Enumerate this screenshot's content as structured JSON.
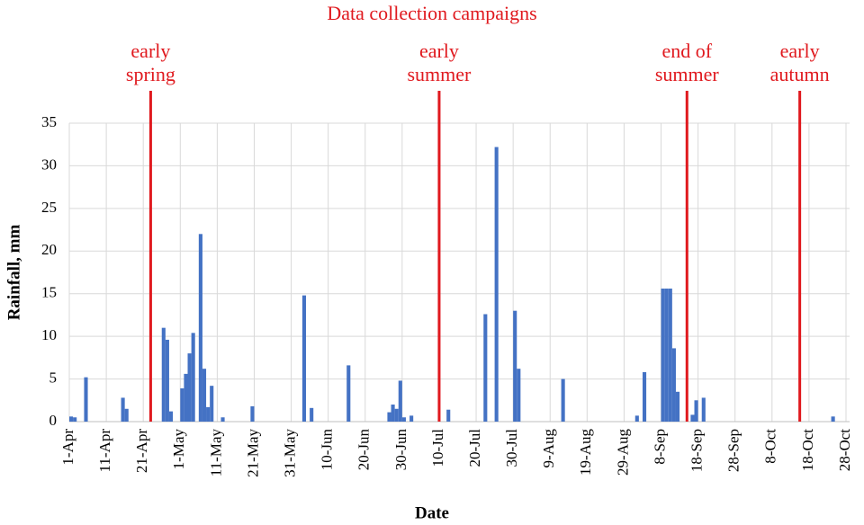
{
  "chart_data": {
    "type": "bar",
    "title": "Data collection campaigns",
    "x_label": "Date",
    "y_label": "Rainfall, mm",
    "color": "#4472c4",
    "grid": true,
    "ylim": [
      0,
      35
    ],
    "yticks": [
      0,
      5,
      10,
      15,
      20,
      25,
      30,
      35
    ],
    "categories": [
      "1-Apr",
      null,
      null,
      null,
      null,
      null,
      null,
      null,
      null,
      null,
      "11-Apr",
      null,
      null,
      null,
      null,
      null,
      null,
      null,
      null,
      null,
      "21-Apr",
      null,
      null,
      null,
      null,
      null,
      null,
      null,
      null,
      null,
      "1-May",
      null,
      null,
      null,
      null,
      null,
      null,
      null,
      null,
      null,
      "11-May",
      null,
      null,
      null,
      null,
      null,
      null,
      null,
      null,
      null,
      "21-May",
      null,
      null,
      null,
      null,
      null,
      null,
      null,
      null,
      null,
      "31-May",
      null,
      null,
      null,
      null,
      null,
      null,
      null,
      null,
      null,
      "10-Jun",
      null,
      null,
      null,
      null,
      null,
      null,
      null,
      null,
      null,
      "20-Jun",
      null,
      null,
      null,
      null,
      null,
      null,
      null,
      null,
      null,
      "30-Jun",
      null,
      null,
      null,
      null,
      null,
      null,
      null,
      null,
      null,
      "10-Jul",
      null,
      null,
      null,
      null,
      null,
      null,
      null,
      null,
      null,
      "20-Jul",
      null,
      null,
      null,
      null,
      null,
      null,
      null,
      null,
      null,
      "30-Jul",
      null,
      null,
      null,
      null,
      null,
      null,
      null,
      null,
      null,
      "9-Aug",
      null,
      null,
      null,
      null,
      null,
      null,
      null,
      null,
      null,
      "19-Aug",
      null,
      null,
      null,
      null,
      null,
      null,
      null,
      null,
      null,
      "29-Aug",
      null,
      null,
      null,
      null,
      null,
      null,
      null,
      null,
      null,
      "8-Sep",
      null,
      null,
      null,
      null,
      null,
      null,
      null,
      null,
      null,
      "18-Sep",
      null,
      null,
      null,
      null,
      null,
      null,
      null,
      null,
      null,
      "28-Sep",
      null,
      null,
      null,
      null,
      null,
      null,
      null,
      null,
      null,
      "8-Oct",
      null,
      null,
      null,
      null,
      null,
      null,
      null,
      null,
      null,
      "18-Oct",
      null,
      null,
      null,
      null,
      null,
      null,
      null,
      null,
      null,
      "28-Oct"
    ],
    "values": [
      0.6,
      0.5,
      0,
      0,
      5.2,
      0,
      0,
      0,
      0,
      0,
      0,
      0,
      0,
      0,
      2.8,
      1.5,
      0,
      0,
      0,
      0,
      0,
      0,
      0,
      0,
      0,
      11,
      9.6,
      1.2,
      0,
      0,
      3.9,
      5.6,
      8,
      10.4,
      0,
      22,
      6.2,
      1.7,
      4.2,
      0,
      0,
      0.5,
      0,
      0,
      0,
      0,
      0,
      0,
      0,
      1.8,
      0,
      0,
      0,
      0,
      0,
      0,
      0,
      0,
      0,
      0,
      0,
      0,
      0,
      14.8,
      0,
      1.6,
      0,
      0,
      0,
      0,
      0,
      0,
      0,
      0,
      0,
      6.6,
      0,
      0,
      0,
      0,
      0,
      0,
      0,
      0,
      0,
      0,
      1.1,
      2,
      1.5,
      4.8,
      0.5,
      0,
      0.7,
      0,
      0,
      0,
      0,
      0,
      0,
      0,
      0,
      0,
      1.4,
      0,
      0,
      0,
      0,
      0,
      0,
      0,
      0,
      0,
      12.6,
      0,
      0,
      32.2,
      0,
      0,
      0,
      0,
      13,
      6.2,
      0,
      0,
      0,
      0,
      0,
      0,
      0,
      0,
      0,
      0,
      0,
      5,
      0,
      0,
      0,
      0,
      0,
      0,
      0,
      0,
      0,
      0,
      0,
      0,
      0,
      0,
      0,
      0,
      0,
      0,
      0,
      0.7,
      0,
      5.8,
      0,
      0,
      0,
      0,
      15.6,
      15.6,
      15.6,
      8.6,
      3.5,
      0,
      0,
      0,
      0.8,
      2.5,
      0,
      2.8,
      0,
      0,
      0,
      0,
      0,
      0,
      0,
      0,
      0,
      0,
      0,
      0,
      0,
      0,
      0,
      0,
      0,
      0,
      0,
      0,
      0,
      0,
      0,
      0,
      0,
      0,
      0,
      0,
      0,
      0,
      0,
      0,
      0,
      0,
      0.6,
      0,
      0,
      0,
      0
    ],
    "campaign_color": "#e0191e",
    "campaigns": [
      {
        "label": [
          "early",
          "spring"
        ],
        "x": 22
      },
      {
        "label": [
          "early",
          "summer"
        ],
        "x": 100
      },
      {
        "label": [
          "end of",
          "summer"
        ],
        "x": 167
      },
      {
        "label": [
          "early",
          "autumn"
        ],
        "x": 197.5
      }
    ]
  }
}
